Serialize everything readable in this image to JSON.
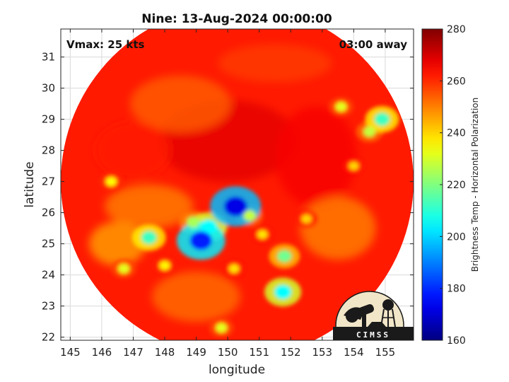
{
  "chart_data": {
    "type": "heatmap",
    "title": "Nine: 13-Aug-2024 00:00:00",
    "xlabel": "longitude",
    "ylabel": "latitude",
    "xlim": [
      144.7,
      155.9
    ],
    "ylim": [
      21.9,
      31.9
    ],
    "xticks": [
      145,
      146,
      147,
      148,
      149,
      150,
      151,
      152,
      153,
      154,
      155
    ],
    "yticks": [
      22,
      23,
      24,
      25,
      26,
      27,
      28,
      29,
      30,
      31
    ],
    "grid": true,
    "annotations": {
      "vmax": "Vmax: 25 kts",
      "time_away": "03:00 away"
    },
    "colorbar": {
      "label": "Brightness Temp - Horizontal Polarization",
      "range": [
        160,
        280
      ],
      "ticks": [
        160,
        180,
        200,
        220,
        240,
        260,
        280
      ],
      "colormap": "jet"
    },
    "swath": {
      "center": [
        150.3,
        27.0
      ],
      "radius_deg": 5.6,
      "background_value": 262
    },
    "features": [
      {
        "lon": 150.25,
        "lat": 26.2,
        "value": 172
      },
      {
        "lon": 149.15,
        "lat": 25.1,
        "value": 178
      },
      {
        "lon": 149.4,
        "lat": 25.55,
        "value": 205
      },
      {
        "lon": 148.9,
        "lat": 25.7,
        "value": 225
      },
      {
        "lon": 147.5,
        "lat": 25.2,
        "value": 212
      },
      {
        "lon": 150.7,
        "lat": 25.9,
        "value": 228
      },
      {
        "lon": 151.1,
        "lat": 25.3,
        "value": 238
      },
      {
        "lon": 151.8,
        "lat": 24.6,
        "value": 218
      },
      {
        "lon": 151.75,
        "lat": 23.45,
        "value": 205
      },
      {
        "lon": 150.2,
        "lat": 24.2,
        "value": 238
      },
      {
        "lon": 148.0,
        "lat": 24.3,
        "value": 236
      },
      {
        "lon": 146.7,
        "lat": 24.2,
        "value": 232
      },
      {
        "lon": 154.9,
        "lat": 29.0,
        "value": 212
      },
      {
        "lon": 154.5,
        "lat": 28.6,
        "value": 228
      },
      {
        "lon": 153.6,
        "lat": 29.4,
        "value": 232
      },
      {
        "lon": 146.3,
        "lat": 27.0,
        "value": 235
      },
      {
        "lon": 149.8,
        "lat": 22.3,
        "value": 232
      },
      {
        "lon": 152.5,
        "lat": 25.8,
        "value": 240
      },
      {
        "lon": 154.0,
        "lat": 27.5,
        "value": 240
      }
    ]
  },
  "logo": {
    "text": "CIMSS"
  }
}
